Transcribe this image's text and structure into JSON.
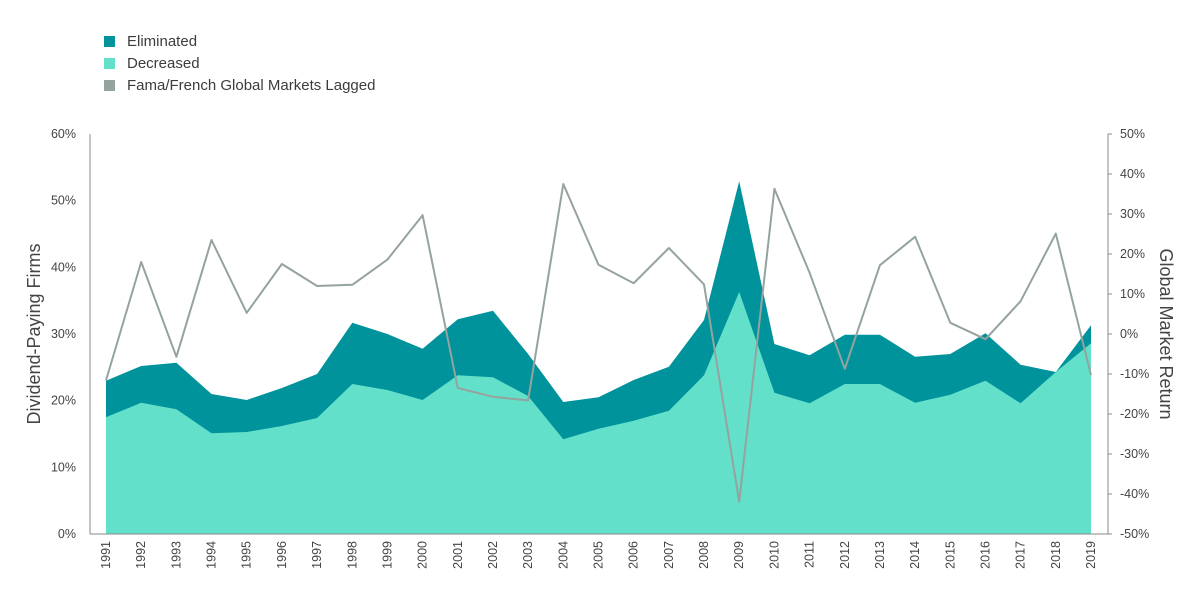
{
  "colors": {
    "eliminated": "#00939C",
    "decreased": "#62E0CA",
    "lagged": "#95A39E",
    "axis": "#888888"
  },
  "chart_data": {
    "type": "area",
    "categories": [
      "1991",
      "1992",
      "1993",
      "1994",
      "1995",
      "1996",
      "1997",
      "1998",
      "1999",
      "2000",
      "2001",
      "2002",
      "2003",
      "2004",
      "2005",
      "2006",
      "2007",
      "2008",
      "2009",
      "2010",
      "2011",
      "2012",
      "2013",
      "2014",
      "2015",
      "2016",
      "2017",
      "2018",
      "2019"
    ],
    "series": [
      {
        "name": "Eliminated",
        "axis": "left",
        "stacked_total": [
          23,
          25.2,
          25.7,
          21,
          20.1,
          21.9,
          24,
          31.7,
          30,
          27.8,
          32.2,
          33.5,
          27,
          19.8,
          20.5,
          23.1,
          25.1,
          32.1,
          52.9,
          28.5,
          26.8,
          29.9,
          29.9,
          26.6,
          27,
          30.1,
          25.4,
          24.3,
          31.3
        ]
      },
      {
        "name": "Decreased",
        "axis": "left",
        "values": [
          17.5,
          19.7,
          18.7,
          15.1,
          15.3,
          16.2,
          17.4,
          22.5,
          21.6,
          20.1,
          23.8,
          23.5,
          20.7,
          14.2,
          15.8,
          17,
          18.5,
          23.8,
          36.3,
          21.2,
          19.6,
          22.5,
          22.5,
          19.7,
          20.9,
          23,
          19.6,
          24.3,
          28.6
        ]
      },
      {
        "name": "Fama/French Global Markets Lagged",
        "axis": "right",
        "type": "line",
        "values": [
          -11.6,
          18,
          -5.7,
          23.5,
          5.3,
          17.5,
          12,
          12.3,
          18.6,
          29.7,
          -13.5,
          -15.7,
          -16.6,
          37.5,
          17.3,
          12.7,
          21.5,
          12.4,
          -41.9,
          36.3,
          15.3,
          -8.7,
          17.2,
          24.3,
          2.8,
          -1.3,
          8.2,
          25.1,
          -10.3
        ]
      }
    ],
    "ylabel": "Dividend-Paying Firms",
    "y2label": "Global Market Return",
    "ylim": [
      0,
      60
    ],
    "y2lim": [
      -50,
      50
    ],
    "yticks": [
      "0%",
      "10%",
      "20%",
      "30%",
      "40%",
      "50%",
      "60%"
    ],
    "y2ticks": [
      "-50%",
      "-40%",
      "-30%",
      "-20%",
      "-10%",
      "0%",
      "10%",
      "20%",
      "30%",
      "40%",
      "50%"
    ],
    "grid": false,
    "legend_position": "top-left"
  }
}
